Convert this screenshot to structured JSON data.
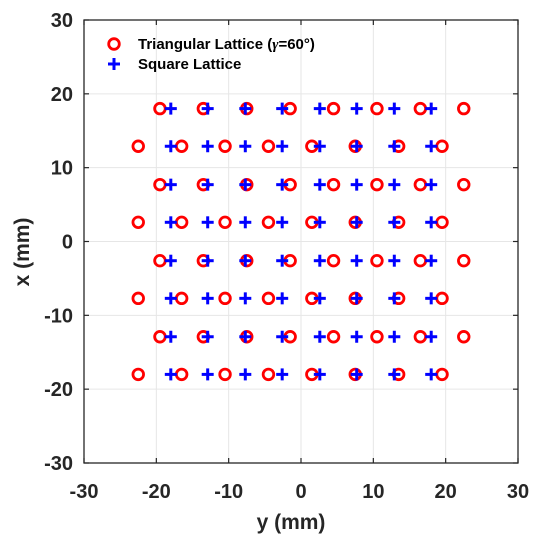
{
  "chart_data": {
    "type": "scatter",
    "xlabel": "y (mm)",
    "ylabel": "x (mm)",
    "xlim": [
      -30,
      30
    ],
    "ylim": [
      -30,
      30
    ],
    "xticks": [
      -30,
      -20,
      -10,
      0,
      10,
      20,
      30
    ],
    "yticks": [
      -30,
      -20,
      -10,
      0,
      10,
      20,
      30
    ],
    "grid": true,
    "box": true,
    "legend_position": "top-left",
    "series": [
      {
        "name": "Triangular Lattice (γ=60°)",
        "legend_prefix": "Triangular Lattice (",
        "legend_greek": "γ",
        "legend_suffix": "=60°)",
        "marker": "circle",
        "color": "#ff0000",
        "points": [
          [
            -19.5,
            18
          ],
          [
            -13.5,
            18
          ],
          [
            -7.5,
            18
          ],
          [
            -1.5,
            18
          ],
          [
            4.5,
            18
          ],
          [
            10.5,
            18
          ],
          [
            16.5,
            18
          ],
          [
            22.5,
            18
          ],
          [
            -22.5,
            12.9
          ],
          [
            -16.5,
            12.9
          ],
          [
            -10.5,
            12.9
          ],
          [
            -4.5,
            12.9
          ],
          [
            1.5,
            12.9
          ],
          [
            7.5,
            12.9
          ],
          [
            13.5,
            12.9
          ],
          [
            19.5,
            12.9
          ],
          [
            -19.5,
            7.7
          ],
          [
            -13.5,
            7.7
          ],
          [
            -7.5,
            7.7
          ],
          [
            -1.5,
            7.7
          ],
          [
            4.5,
            7.7
          ],
          [
            10.5,
            7.7
          ],
          [
            16.5,
            7.7
          ],
          [
            22.5,
            7.7
          ],
          [
            -22.5,
            2.6
          ],
          [
            -16.5,
            2.6
          ],
          [
            -10.5,
            2.6
          ],
          [
            -4.5,
            2.6
          ],
          [
            1.5,
            2.6
          ],
          [
            7.5,
            2.6
          ],
          [
            13.5,
            2.6
          ],
          [
            19.5,
            2.6
          ],
          [
            -19.5,
            -2.6
          ],
          [
            -13.5,
            -2.6
          ],
          [
            -7.5,
            -2.6
          ],
          [
            -1.5,
            -2.6
          ],
          [
            4.5,
            -2.6
          ],
          [
            10.5,
            -2.6
          ],
          [
            16.5,
            -2.6
          ],
          [
            22.5,
            -2.6
          ],
          [
            -22.5,
            -7.7
          ],
          [
            -16.5,
            -7.7
          ],
          [
            -10.5,
            -7.7
          ],
          [
            -4.5,
            -7.7
          ],
          [
            1.5,
            -7.7
          ],
          [
            7.5,
            -7.7
          ],
          [
            13.5,
            -7.7
          ],
          [
            19.5,
            -7.7
          ],
          [
            -19.5,
            -12.9
          ],
          [
            -13.5,
            -12.9
          ],
          [
            -7.5,
            -12.9
          ],
          [
            -1.5,
            -12.9
          ],
          [
            4.5,
            -12.9
          ],
          [
            10.5,
            -12.9
          ],
          [
            16.5,
            -12.9
          ],
          [
            22.5,
            -12.9
          ],
          [
            -22.5,
            -18
          ],
          [
            -16.5,
            -18
          ],
          [
            -10.5,
            -18
          ],
          [
            -4.5,
            -18
          ],
          [
            1.5,
            -18
          ],
          [
            7.5,
            -18
          ],
          [
            13.5,
            -18
          ],
          [
            19.5,
            -18
          ]
        ]
      },
      {
        "name": "Square Lattice",
        "marker": "plus",
        "color": "#0000ff",
        "points": [
          [
            -18,
            18
          ],
          [
            -12.9,
            18
          ],
          [
            -7.7,
            18
          ],
          [
            -2.6,
            18
          ],
          [
            2.6,
            18
          ],
          [
            7.7,
            18
          ],
          [
            12.9,
            18
          ],
          [
            18,
            18
          ],
          [
            -18,
            12.9
          ],
          [
            -12.9,
            12.9
          ],
          [
            -7.7,
            12.9
          ],
          [
            -2.6,
            12.9
          ],
          [
            2.6,
            12.9
          ],
          [
            7.7,
            12.9
          ],
          [
            12.9,
            12.9
          ],
          [
            18,
            12.9
          ],
          [
            -18,
            7.7
          ],
          [
            -12.9,
            7.7
          ],
          [
            -7.7,
            7.7
          ],
          [
            -2.6,
            7.7
          ],
          [
            2.6,
            7.7
          ],
          [
            7.7,
            7.7
          ],
          [
            12.9,
            7.7
          ],
          [
            18,
            7.7
          ],
          [
            -18,
            2.6
          ],
          [
            -12.9,
            2.6
          ],
          [
            -7.7,
            2.6
          ],
          [
            -2.6,
            2.6
          ],
          [
            2.6,
            2.6
          ],
          [
            7.7,
            2.6
          ],
          [
            12.9,
            2.6
          ],
          [
            18,
            2.6
          ],
          [
            -18,
            -2.6
          ],
          [
            -12.9,
            -2.6
          ],
          [
            -7.7,
            -2.6
          ],
          [
            -2.6,
            -2.6
          ],
          [
            2.6,
            -2.6
          ],
          [
            7.7,
            -2.6
          ],
          [
            12.9,
            -2.6
          ],
          [
            18,
            -2.6
          ],
          [
            -18,
            -7.7
          ],
          [
            -12.9,
            -7.7
          ],
          [
            -7.7,
            -7.7
          ],
          [
            -2.6,
            -7.7
          ],
          [
            2.6,
            -7.7
          ],
          [
            7.7,
            -7.7
          ],
          [
            12.9,
            -7.7
          ],
          [
            18,
            -7.7
          ],
          [
            -18,
            -12.9
          ],
          [
            -12.9,
            -12.9
          ],
          [
            -7.7,
            -12.9
          ],
          [
            -2.6,
            -12.9
          ],
          [
            2.6,
            -12.9
          ],
          [
            7.7,
            -12.9
          ],
          [
            12.9,
            -12.9
          ],
          [
            18,
            -12.9
          ],
          [
            -18,
            -18
          ],
          [
            -12.9,
            -18
          ],
          [
            -7.7,
            -18
          ],
          [
            -2.6,
            -18
          ],
          [
            2.6,
            -18
          ],
          [
            7.7,
            -18
          ],
          [
            12.9,
            -18
          ],
          [
            18,
            -18
          ]
        ]
      }
    ]
  }
}
